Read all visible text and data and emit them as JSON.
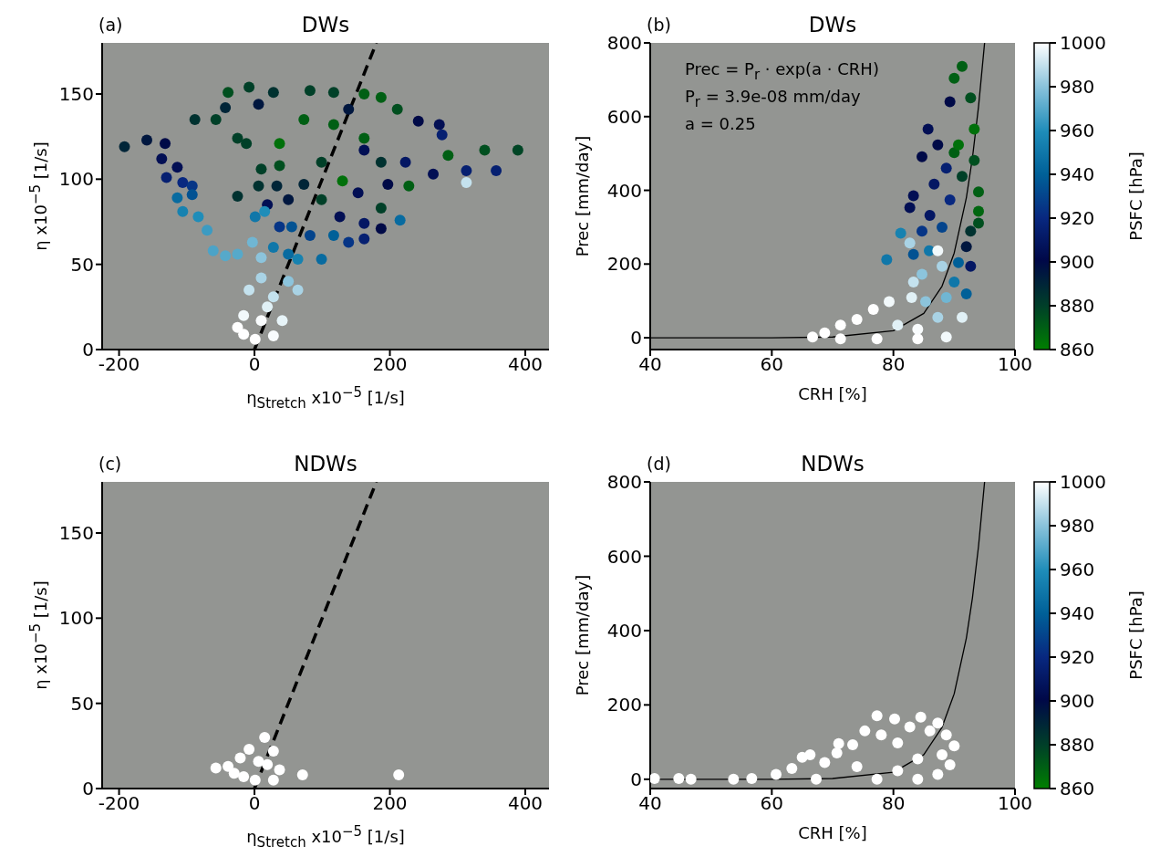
{
  "chart_data": [
    {
      "type": "scatter",
      "title": "DWs",
      "xlabel": "η$_{Stretch}$ x10$^{−5}$ [1/s]",
      "ylabel": "η x10$^{−5}$ [1/s]",
      "annotations": [
        "(a)"
      ],
      "xlim": [
        -225,
        435
      ],
      "xticks": [
        -200,
        0,
        200,
        400
      ],
      "ylim": [
        0,
        180
      ],
      "yticks": [
        0,
        50,
        100,
        150
      ],
      "marker": "circle",
      "series": [
        {
          "type": "scatter",
          "x": [
            -192,
            -159,
            -132,
            -137,
            -114,
            -130,
            -106,
            -92,
            -114,
            -92,
            -106,
            -83,
            -70,
            -61,
            -43,
            -25,
            -39,
            -8,
            6,
            28,
            82,
            117,
            162,
            187,
            211,
            -88,
            -57,
            -43,
            -25,
            -12,
            37,
            73,
            117,
            139,
            162,
            242,
            273,
            277,
            286,
            340,
            389,
            264,
            313,
            357,
            313,
            162,
            187,
            223,
            228,
            197,
            130,
            99,
            37,
            10,
            6,
            -25,
            33,
            73,
            153,
            187,
            215,
            162,
            187,
            19,
            50,
            99,
            126,
            139,
            162,
            117,
            82,
            37,
            1,
            15,
            55,
            99,
            64,
            50,
            28,
            -3,
            10,
            10,
            50,
            64,
            28,
            -8,
            -16,
            10,
            -16,
            1,
            28,
            41,
            -25,
            19
          ],
          "values": [
            119,
            123,
            121,
            112,
            107,
            101,
            98,
            96,
            89,
            91,
            81,
            78,
            70,
            58,
            55,
            56,
            151,
            154,
            144,
            151,
            152,
            151,
            150,
            148,
            141,
            135,
            135,
            142,
            124,
            121,
            121,
            135,
            132,
            141,
            124,
            134,
            132,
            126,
            114,
            117,
            117,
            103,
            105,
            105,
            98,
            117,
            110,
            110,
            96,
            97,
            99,
            110,
            108,
            106,
            96,
            90,
            96,
            97,
            92,
            83,
            76,
            74,
            71,
            85,
            88,
            88,
            78,
            63,
            65,
            67,
            67,
            72,
            78,
            81,
            72,
            53,
            53,
            56,
            60,
            63,
            54,
            42,
            40,
            35,
            31,
            35,
            20,
            17,
            9,
            6,
            8,
            17,
            13,
            25
          ],
          "colors": [
            "#002538",
            "#00173f",
            "#000a47",
            "#020f54",
            "#020f54",
            "#062071",
            "#082880",
            "#063586",
            "#086ba0",
            "#025292",
            "#1782b0",
            "#1f8db9",
            "#3c9bc2",
            "#4ca3c7",
            "#56a9ca",
            "#56a9ca",
            "#004f1f",
            "#004028",
            "#00173f",
            "#003230",
            "#004028",
            "#004028",
            "#005f14",
            "#005f14",
            "#004f1f",
            "#003230",
            "#004028",
            "#002538",
            "#004028",
            "#004028",
            "#00700a",
            "#005f14",
            "#005f14",
            "#00173f",
            "#005f14",
            "#000a47",
            "#020f54",
            "#062071",
            "#005f14",
            "#004f1f",
            "#004525",
            "#020f54",
            "#062071",
            "#062071",
            "#c4e2ee",
            "#020f54",
            "#003230",
            "#041763",
            "#005f14",
            "#000a47",
            "#00700a",
            "#004028",
            "#004f1f",
            "#004028",
            "#003230",
            "#003230",
            "#002538",
            "#002538",
            "#020f54",
            "#004028",
            "#086ba0",
            "#041763",
            "#000a47",
            "#020f54",
            "#00173f",
            "#004028",
            "#020f54",
            "#063586",
            "#062071",
            "#006098",
            "#04448c",
            "#063586",
            "#1077a9",
            "#1f8db9",
            "#025292",
            "#086ba0",
            "#1782b0",
            "#086ba0",
            "#1077a9",
            "#70b6d3",
            "#8cc4dc",
            "#a9d3e5",
            "#8cc4dc",
            "#a9d3e5",
            "#c4e2ee",
            "#c4e2ee",
            "#f2f9fb",
            "#f9fcfd",
            "#ffffff",
            "#ffffff",
            "#f9fcfd",
            "#e7f4f8",
            "#ffffff",
            "#e1f1f6"
          ]
        },
        {
          "type": "line",
          "marker": "none",
          "color": "#000000",
          "line_style": "dashed",
          "x": [
            0,
            180
          ],
          "values": [
            0,
            180
          ]
        }
      ]
    },
    {
      "type": "scatter",
      "title": "DWs",
      "xlabel": "CRH [%]",
      "ylabel": "Prec [mm/day]",
      "clabel": "PSFC [hPa]",
      "clim": [
        860,
        1000
      ],
      "cticks": [
        860,
        880,
        900,
        920,
        940,
        960,
        980,
        1000
      ],
      "annotations": [
        "(b)",
        "Prec = P$_{r}$ · exp(a · CRH)",
        "P$_{r}$ = 3.9e-08 mm/day",
        "a = 0.25"
      ],
      "xlim": [
        40,
        100
      ],
      "xticks": [
        40,
        60,
        80,
        100
      ],
      "ylim": [
        -32,
        800
      ],
      "yticks": [
        0,
        200,
        400,
        600,
        800
      ],
      "marker": "circle",
      "series": [
        {
          "type": "scatter",
          "x": [
            91.3,
            90,
            89.3,
            92.7,
            85.7,
            87.3,
            84.7,
            90,
            93.3,
            83.3,
            86.7,
            88.7,
            91.3,
            94,
            82.7,
            86,
            89.3,
            94,
            84.7,
            88,
            92.7,
            81.2,
            82.7,
            92,
            78.9,
            83.3,
            85.9,
            90.7,
            92.7,
            84.7,
            88,
            87.3,
            83.3,
            90,
            92,
            88.7,
            85.3,
            83,
            79.3,
            76.7,
            74,
            71.3,
            68.7,
            66.7,
            71.3,
            77.3,
            84,
            88.7,
            91.3,
            80.7,
            87.3,
            84,
            94,
            93.3,
            90.7
          ],
          "values": [
            736,
            704,
            640,
            651,
            566,
            523,
            491,
            502,
            481,
            385,
            417,
            460,
            438,
            396,
            353,
            332,
            374,
            343,
            289,
            300,
            289,
            284,
            257,
            247,
            212,
            226,
            236,
            204,
            194,
            172,
            194,
            236,
            151,
            151,
            119,
            109,
            98,
            109,
            98,
            77,
            50,
            34,
            13,
            2,
            -3,
            -3,
            -3,
            2,
            55,
            34,
            55,
            23,
            311,
            566,
            523
          ],
          "colors": [
            "#005f14",
            "#005f14",
            "#000a47",
            "#004f1f",
            "#020f54",
            "#000a47",
            "#000a47",
            "#005f14",
            "#004f1f",
            "#020f54",
            "#041763",
            "#062071",
            "#004028",
            "#005f14",
            "#020f54",
            "#041763",
            "#082880",
            "#006610",
            "#063586",
            "#04448c",
            "#003230",
            "#1782b0",
            "#a9d3e5",
            "#00173f",
            "#1077a9",
            "#025292",
            "#1077a9",
            "#006098",
            "#041763",
            "#8cc4dc",
            "#a9d3e5",
            "#f2f9fb",
            "#c4e2ee",
            "#1077a9",
            "#006098",
            "#70b6d3",
            "#8cc4dc",
            "#e1f1f6",
            "#f2f9fb",
            "#ffffff",
            "#ffffff",
            "#ffffff",
            "#ffffff",
            "#ffffff",
            "#ffffff",
            "#ffffff",
            "#ffffff",
            "#f2f9fb",
            "#e1f1f6",
            "#e1f1f6",
            "#a9d3e5",
            "#f9fcfd",
            "#004f1f",
            "#00700a",
            "#00700a"
          ]
        },
        {
          "type": "line",
          "marker": "none",
          "color": "#000000",
          "line_style": "solid",
          "x": [
            40,
            60,
            70,
            80,
            85,
            88,
            90,
            92,
            93,
            94,
            95
          ],
          "values": [
            0,
            0,
            2,
            19,
            66,
            140,
            230,
            380,
            488,
            627,
            800
          ]
        }
      ]
    },
    {
      "type": "scatter",
      "title": "NDWs",
      "xlabel": "η$_{Stretch}$ x10$^{−5}$ [1/s]",
      "ylabel": "η x10$^{−5}$ [1/s]",
      "annotations": [
        "(c)"
      ],
      "xlim": [
        -225,
        435
      ],
      "xticks": [
        -200,
        0,
        200,
        400
      ],
      "ylim": [
        0,
        180
      ],
      "yticks": [
        0,
        50,
        100,
        150
      ],
      "marker": "circle",
      "series": [
        {
          "type": "scatter",
          "color": "#ffffff",
          "x": [
            -57,
            -39,
            -16,
            -21,
            -8,
            15,
            28,
            19,
            37,
            1,
            28,
            71,
            213,
            -30,
            6
          ],
          "values": [
            12,
            13,
            7,
            18,
            23,
            30,
            22,
            14,
            11,
            5,
            5,
            8,
            8,
            9,
            16
          ]
        },
        {
          "type": "line",
          "marker": "none",
          "color": "#000000",
          "line_style": "dashed",
          "x": [
            0,
            180
          ],
          "values": [
            0,
            180
          ]
        }
      ]
    },
    {
      "type": "scatter",
      "title": "NDWs",
      "xlabel": "CRH [%]",
      "ylabel": "Prec [mm/day]",
      "clabel": "PSFC [hPa]",
      "clim": [
        860,
        1000
      ],
      "cticks": [
        860,
        880,
        900,
        920,
        940,
        960,
        980,
        1000
      ],
      "annotations": [
        "(d)"
      ],
      "xlim": [
        40,
        100
      ],
      "xticks": [
        40,
        60,
        80,
        100
      ],
      "ylim": [
        -25,
        800
      ],
      "yticks": [
        0,
        200,
        400,
        600,
        800
      ],
      "marker": "circle",
      "series": [
        {
          "type": "scatter",
          "color": "#ffffff",
          "x": [
            40.7,
            44.7,
            46.7,
            53.7,
            56.7,
            60.7,
            63.3,
            65,
            66.3,
            68.7,
            70.7,
            71,
            73.3,
            75.3,
            77.3,
            78,
            80.2,
            80.7,
            82.7,
            84.5,
            86,
            87.3,
            88.7,
            90,
            89.3,
            87.3,
            84,
            77.3,
            67.3,
            74,
            84,
            80.7,
            88
          ],
          "values": [
            2,
            2,
            0,
            0,
            2,
            13,
            29,
            59,
            66,
            45,
            71,
            96,
            93,
            130,
            171,
            119,
            162,
            98,
            141,
            167,
            130,
            151,
            119,
            90,
            39,
            13,
            0,
            0,
            0,
            34,
            55,
            23,
            66
          ]
        },
        {
          "type": "line",
          "marker": "none",
          "color": "#000000",
          "line_style": "solid",
          "x": [
            40,
            60,
            70,
            80,
            85,
            88,
            90,
            92,
            93,
            94,
            95
          ],
          "values": [
            0,
            0,
            2,
            19,
            66,
            140,
            230,
            380,
            488,
            627,
            800
          ]
        }
      ]
    }
  ]
}
